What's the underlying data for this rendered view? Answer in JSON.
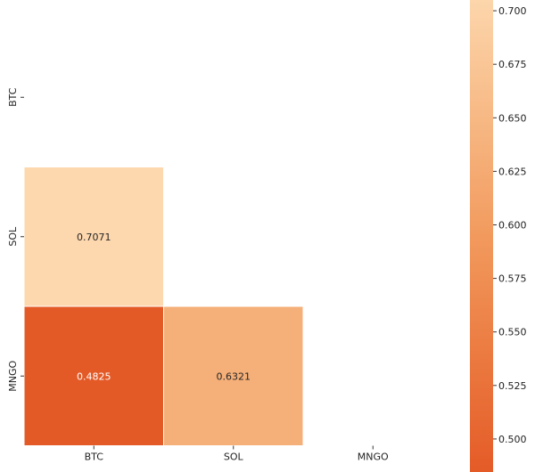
{
  "chart_data": {
    "type": "heatmap",
    "title": "",
    "xlabel": "",
    "ylabel": "",
    "x_categories": [
      "BTC",
      "SOL",
      "MNGO"
    ],
    "y_categories": [
      "BTC",
      "SOL",
      "MNGO"
    ],
    "mask": "upper-triangle-including-diagonal",
    "cells": [
      {
        "row": "SOL",
        "col": "BTC",
        "value": 0.7071,
        "label": "0.7071"
      },
      {
        "row": "MNGO",
        "col": "BTC",
        "value": 0.4825,
        "label": "0.4825"
      },
      {
        "row": "MNGO",
        "col": "SOL",
        "value": 0.6321,
        "label": "0.6321"
      }
    ],
    "colorbar": {
      "vmin": 0.4825,
      "vmax": 0.7071,
      "ticks": [
        "0.500",
        "0.525",
        "0.550",
        "0.575",
        "0.600",
        "0.625",
        "0.650",
        "0.675",
        "0.700"
      ],
      "tick_values": [
        0.5,
        0.525,
        0.55,
        0.575,
        0.6,
        0.625,
        0.65,
        0.675,
        0.7
      ],
      "colors": [
        "#e45a27",
        "#eb7a40",
        "#f29a5e",
        "#f7b985",
        "#fdd7ad"
      ]
    },
    "grid": false,
    "legend": "colorbar-right"
  }
}
